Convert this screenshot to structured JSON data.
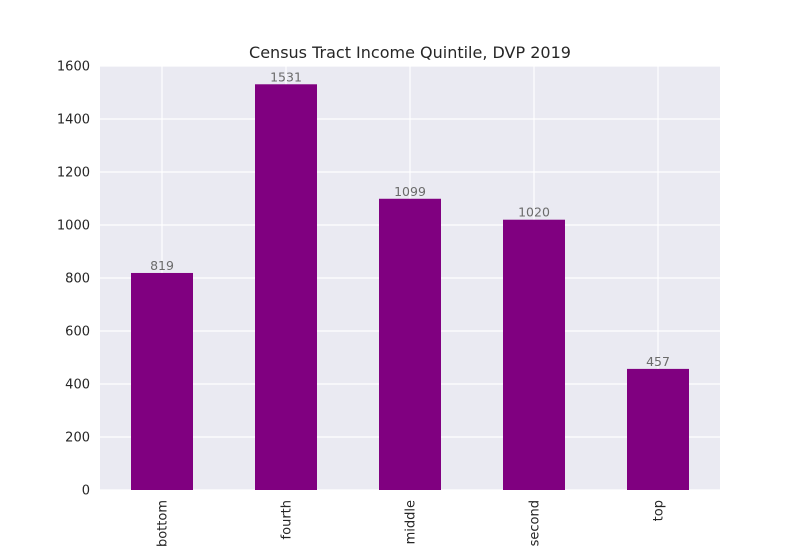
{
  "chart_data": {
    "type": "bar",
    "title": "Census Tract Income Quintile, DVP 2019",
    "xlabel": "",
    "ylabel": "",
    "categories": [
      "bottom",
      "fourth",
      "middle",
      "second",
      "top"
    ],
    "values": [
      819,
      1531,
      1099,
      1020,
      457
    ],
    "data_labels": [
      "819",
      "1531",
      "1099",
      "1020",
      "457"
    ],
    "ylim": [
      0,
      1600
    ],
    "yticks": [
      0,
      200,
      400,
      600,
      800,
      1000,
      1200,
      1400,
      1600
    ],
    "ytick_labels": [
      "0",
      "200",
      "400",
      "600",
      "800",
      "1000",
      "1200",
      "1400",
      "1600"
    ],
    "grid": true,
    "legend": "none",
    "colors": {
      "bar": "#800080",
      "plot_background": "#eaeaf2",
      "grid": "#ffffff",
      "data_label": "#6b6b6b",
      "text": "#262626"
    }
  }
}
